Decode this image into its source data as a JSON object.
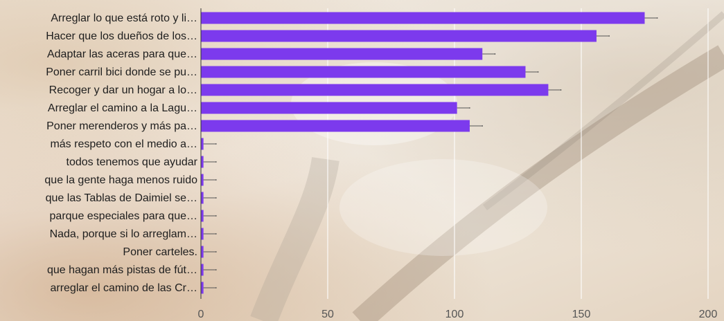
{
  "chart_data": {
    "type": "bar",
    "orientation": "horizontal",
    "categories": [
      "Arreglar lo que está roto y li…",
      "Hacer que los dueños de los…",
      "Adaptar las aceras para que…",
      "Poner carril bici donde se pu…",
      "Recoger y dar un hogar a lo…",
      "Arreglar el camino a la Lagu…",
      "Poner merenderos y más pa…",
      "más respeto con el medio a…",
      "todos tenemos que ayudar",
      "que la gente haga menos ruido",
      "que las Tablas de Daimiel se…",
      "parque especiales para que…",
      "Nada, porque si lo arreglam…",
      "Poner carteles.",
      "que hagan más pistas de fút…",
      "arreglar el camino de las Cr…"
    ],
    "values": [
      175,
      156,
      111,
      128,
      137,
      101,
      106,
      1,
      1,
      1,
      1,
      1,
      1,
      1,
      1,
      1
    ],
    "error_high": [
      180,
      161,
      116,
      133,
      142,
      106,
      111,
      6,
      6,
      6,
      6,
      6,
      6,
      6,
      6,
      6
    ],
    "xlim": [
      0,
      200
    ],
    "ticks": [
      0,
      50,
      100,
      150,
      200
    ],
    "grid": true,
    "title": "",
    "xlabel": "",
    "ylabel": "",
    "colors": {
      "bar": "#7c3aed",
      "error_bar": "#555555",
      "grid": "#ffffff",
      "axis": "#333333"
    }
  }
}
